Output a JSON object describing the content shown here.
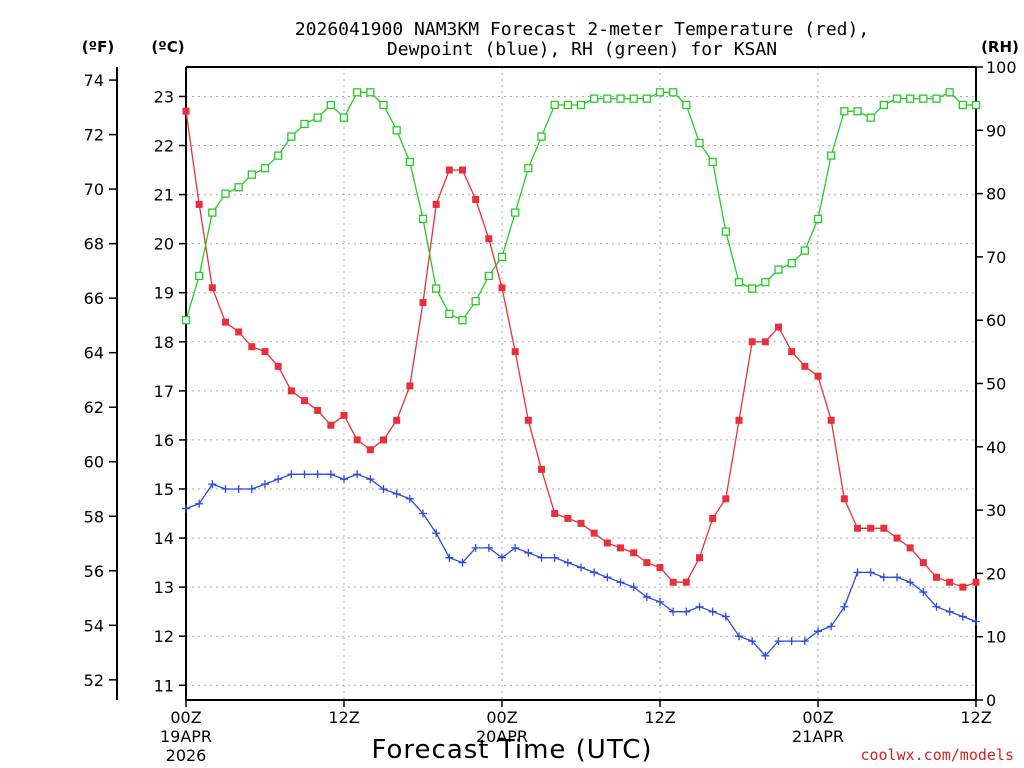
{
  "chart_data": {
    "type": "line",
    "title_line1": "2026041900 NAM3KM Forecast 2-meter Temperature (red),",
    "title_line2": "Dewpoint (blue), RH (green) for KSAN",
    "unit_f": "(ºF)",
    "unit_c": "(ºC)",
    "unit_rh": "(RH)",
    "xlabel": "Forecast Time (UTC)",
    "credit": "coolwx.com/models",
    "x_ticks": [
      {
        "hour": 0,
        "label": "00Z",
        "date": "19APR",
        "year": "2026"
      },
      {
        "hour": 12,
        "label": "12Z",
        "date": "",
        "year": ""
      },
      {
        "hour": 24,
        "label": "00Z",
        "date": "20APR",
        "year": ""
      },
      {
        "hour": 36,
        "label": "12Z",
        "date": "",
        "year": ""
      },
      {
        "hour": 48,
        "label": "00Z",
        "date": "21APR",
        "year": ""
      },
      {
        "hour": 60,
        "label": "12Z",
        "date": "",
        "year": ""
      }
    ],
    "xlim": [
      0,
      60
    ],
    "celsius_axis": {
      "range": [
        10.7,
        23.6
      ],
      "ticks": [
        11,
        12,
        13,
        14,
        15,
        16,
        17,
        18,
        19,
        20,
        21,
        22,
        23
      ]
    },
    "fahrenheit_axis": {
      "ticks": [
        52,
        54,
        56,
        58,
        60,
        62,
        64,
        66,
        68,
        70,
        72,
        74
      ]
    },
    "rh_axis": {
      "range": [
        0,
        100
      ],
      "ticks": [
        0,
        10,
        20,
        30,
        40,
        50,
        60,
        70,
        80,
        90,
        100
      ]
    },
    "grid": true,
    "series": [
      {
        "name": "2-meter Temperature",
        "unit": "C",
        "color": "#e8303a",
        "marker": "filled-square",
        "x": [
          0,
          1,
          2,
          3,
          4,
          5,
          6,
          7,
          8,
          9,
          10,
          11,
          12,
          13,
          14,
          15,
          16,
          17,
          18,
          19,
          20,
          21,
          22,
          23,
          24,
          25,
          26,
          27,
          28,
          29,
          30,
          31,
          32,
          33,
          34,
          35,
          36,
          37,
          38,
          39,
          40,
          41,
          42,
          43,
          44,
          45,
          46,
          47,
          48,
          49,
          50,
          51,
          52,
          53,
          54,
          55,
          56,
          57,
          58,
          59,
          60
        ],
        "values": [
          22.7,
          20.8,
          19.1,
          18.4,
          18.2,
          17.9,
          17.8,
          17.5,
          17.0,
          16.8,
          16.6,
          16.3,
          16.5,
          16.0,
          15.8,
          16.0,
          16.4,
          17.1,
          18.8,
          20.8,
          21.5,
          21.5,
          20.9,
          20.1,
          19.1,
          17.8,
          16.4,
          15.4,
          14.5,
          14.4,
          14.3,
          14.1,
          13.9,
          13.8,
          13.7,
          13.5,
          13.4,
          13.1,
          13.1,
          13.6,
          14.4,
          14.8,
          16.4,
          18.0,
          18.0,
          18.3,
          17.8,
          17.5,
          17.3,
          16.4,
          14.8,
          14.2,
          14.2,
          14.2,
          14.0,
          13.8,
          13.5,
          13.2,
          13.1,
          13.0,
          13.1
        ]
      },
      {
        "name": "Dewpoint",
        "unit": "C",
        "color": "#2a4be0",
        "marker": "plus",
        "x": [
          0,
          1,
          2,
          3,
          4,
          5,
          6,
          7,
          8,
          9,
          10,
          11,
          12,
          13,
          14,
          15,
          16,
          17,
          18,
          19,
          20,
          21,
          22,
          23,
          24,
          25,
          26,
          27,
          28,
          29,
          30,
          31,
          32,
          33,
          34,
          35,
          36,
          37,
          38,
          39,
          40,
          41,
          42,
          43,
          44,
          45,
          46,
          47,
          48,
          49,
          50,
          51,
          52,
          53,
          54,
          55,
          56,
          57,
          58,
          59,
          60
        ],
        "values": [
          14.6,
          14.7,
          15.1,
          15.0,
          15.0,
          15.0,
          15.1,
          15.2,
          15.3,
          15.3,
          15.3,
          15.3,
          15.2,
          15.3,
          15.2,
          15.0,
          14.9,
          14.8,
          14.5,
          14.1,
          13.6,
          13.5,
          13.8,
          13.8,
          13.6,
          13.8,
          13.7,
          13.6,
          13.6,
          13.5,
          13.4,
          13.3,
          13.2,
          13.1,
          13.0,
          12.8,
          12.7,
          12.5,
          12.5,
          12.6,
          12.5,
          12.4,
          12.0,
          11.9,
          11.6,
          11.9,
          11.9,
          11.9,
          12.1,
          12.2,
          12.6,
          13.3,
          13.3,
          13.2,
          13.2,
          13.1,
          12.9,
          12.6,
          12.5,
          12.4,
          12.3
        ]
      },
      {
        "name": "RH",
        "unit": "%",
        "color": "#22cc22",
        "marker": "open-square",
        "x": [
          0,
          1,
          2,
          3,
          4,
          5,
          6,
          7,
          8,
          9,
          10,
          11,
          12,
          13,
          14,
          15,
          16,
          17,
          18,
          19,
          20,
          21,
          22,
          23,
          24,
          25,
          26,
          27,
          28,
          29,
          30,
          31,
          32,
          33,
          34,
          35,
          36,
          37,
          38,
          39,
          40,
          41,
          42,
          43,
          44,
          45,
          46,
          47,
          48,
          49,
          50,
          51,
          52,
          53,
          54,
          55,
          56,
          57,
          58,
          59,
          60
        ],
        "values": [
          60,
          67,
          77,
          80,
          81,
          83,
          84,
          86,
          89,
          91,
          92,
          94,
          92,
          96,
          96,
          94,
          90,
          85,
          76,
          65,
          61,
          60,
          63,
          67,
          70,
          77,
          84,
          89,
          94,
          94,
          94,
          95,
          95,
          95,
          95,
          95,
          96,
          96,
          94,
          88,
          85,
          74,
          66,
          65,
          66,
          68,
          69,
          71,
          76,
          86,
          93,
          93,
          92,
          94,
          95,
          95,
          95,
          95,
          96,
          94,
          94
        ]
      }
    ]
  }
}
